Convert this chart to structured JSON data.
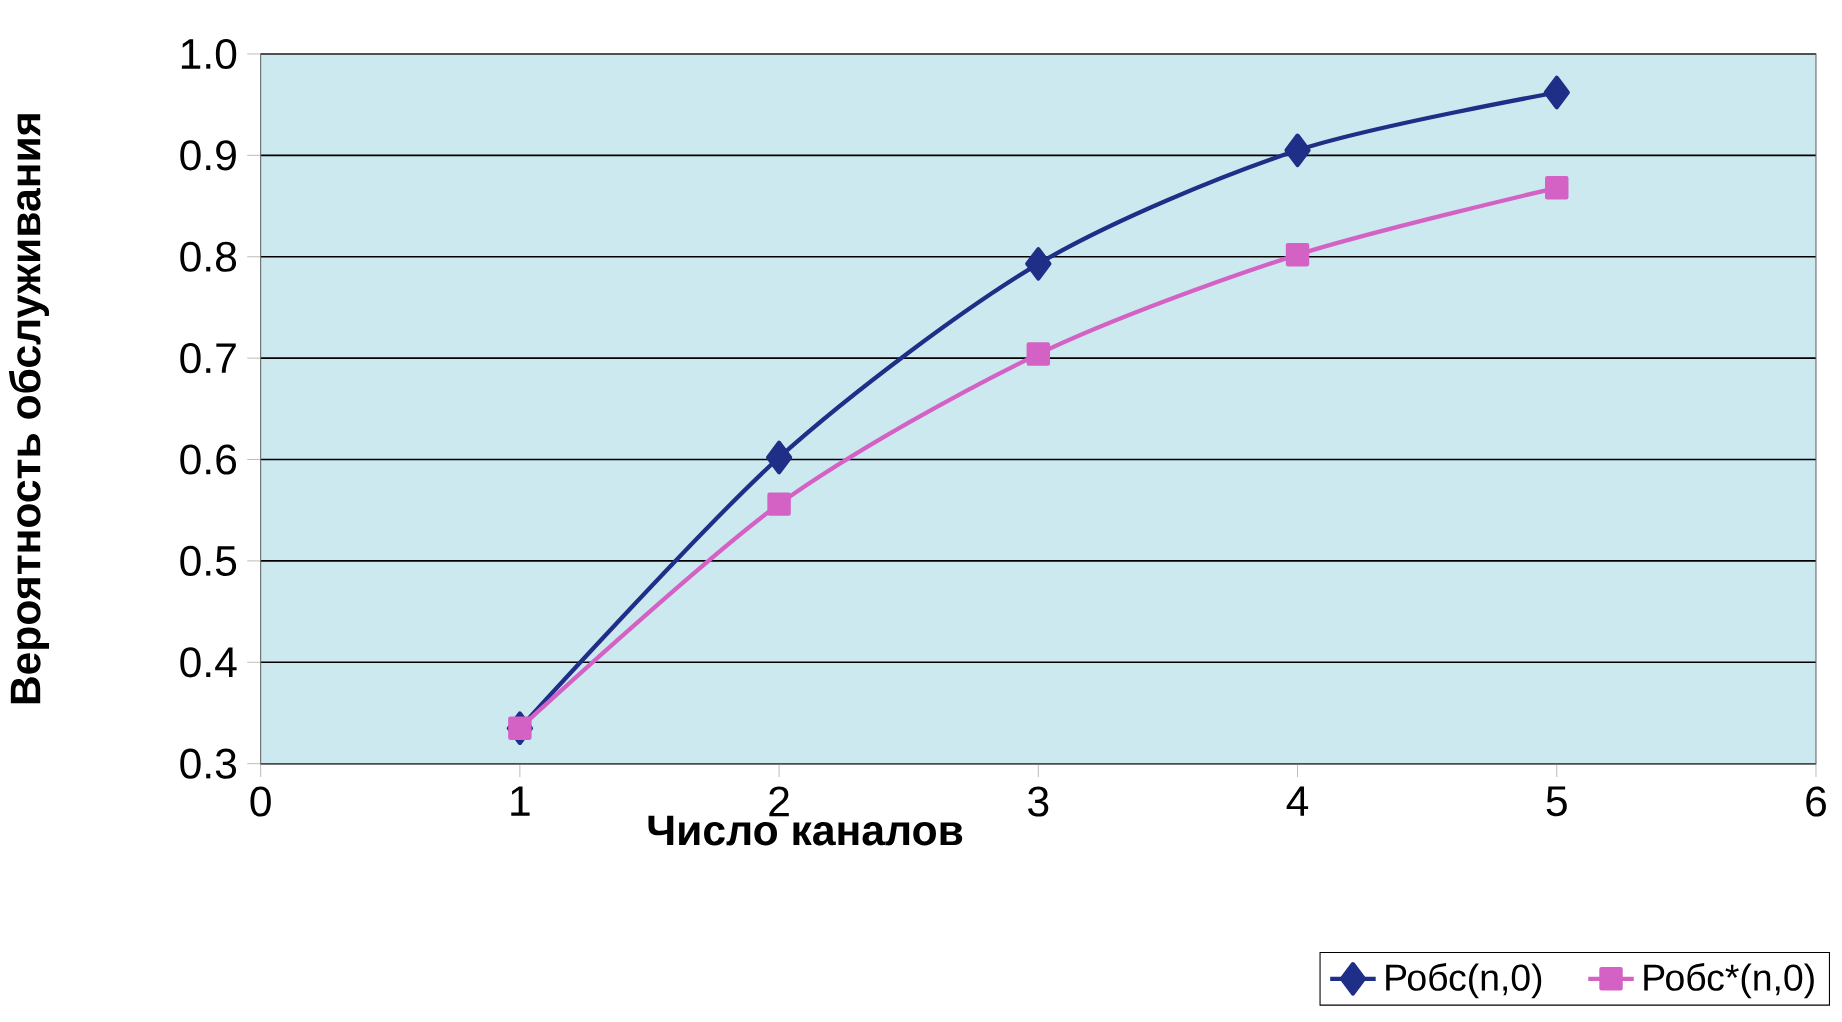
{
  "chart_data": {
    "type": "line",
    "xlabel": "Число каналов",
    "ylabel": "Вероятность обслуживания",
    "x": [
      1,
      2,
      3,
      4,
      5
    ],
    "xlim": [
      0,
      6
    ],
    "xticks": [
      0,
      1,
      2,
      3,
      4,
      5,
      6
    ],
    "ylim": [
      0.3,
      1.0
    ],
    "yticks": [
      0.3,
      0.4,
      0.5,
      0.6,
      0.7,
      0.8,
      0.9,
      {
        "value": 1,
        "label": "1.0"
      }
    ],
    "grid": "y",
    "legend": "bottom right",
    "series": [
      {
        "name": "Робс(n,0)",
        "color": "#1f2e86",
        "marker": "diamond",
        "values": [
          0.335,
          0.602,
          0.793,
          0.905,
          0.962
        ]
      },
      {
        "name": "Робс*(n,0)",
        "color": "#d462c4",
        "marker": "square",
        "values": [
          0.335,
          0.556,
          0.704,
          0.802,
          0.868
        ]
      }
    ]
  }
}
